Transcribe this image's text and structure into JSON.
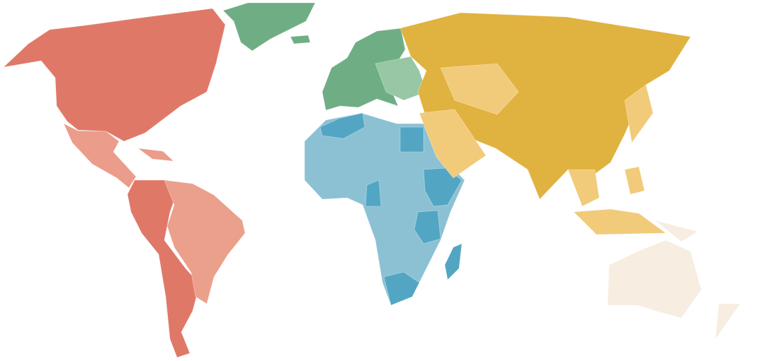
{
  "map": {
    "background": "#ffffff",
    "regions": [
      {
        "id": "north-america",
        "color": "#e07868"
      },
      {
        "id": "central-america",
        "color": "#eb9c8a"
      },
      {
        "id": "south-america-west",
        "color": "#e07868"
      },
      {
        "id": "south-america-east",
        "color": "#eba08c"
      },
      {
        "id": "greenland",
        "color": "#6fae84"
      },
      {
        "id": "western-europe",
        "color": "#6fae84"
      },
      {
        "id": "eastern-europe",
        "color": "#97c7a4"
      },
      {
        "id": "africa",
        "color": "#8cc1d4"
      },
      {
        "id": "africa-highlight",
        "color": "#52a6c3"
      },
      {
        "id": "asia",
        "color": "#e0b23f"
      },
      {
        "id": "asia-light",
        "color": "#f1cb7a"
      },
      {
        "id": "oceania",
        "color": "#f7ede0"
      }
    ]
  }
}
